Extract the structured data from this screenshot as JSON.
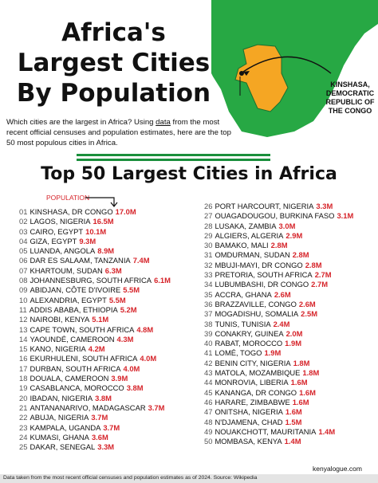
{
  "title_lines": [
    "Africa's",
    "Largest Cities",
    "By Population"
  ],
  "map_callout": [
    "KINSHASA,",
    "DEMOCRATIC",
    "REPUBLIC OF",
    "THE CONGO"
  ],
  "intro": {
    "part1": "Which cities are the largest in Africa? Using ",
    "link": "data",
    "part2": " from the most recent official censuses and population estimates, here are the top 50 most populous cities in Africa."
  },
  "heading": "Top 50 Largest Cities in Africa",
  "population_label": "POPULATION",
  "colors": {
    "accent_red": "#d6242a",
    "map_green": "#27a844",
    "highlight_orange": "#f5a623",
    "flag_green": "#1a8f3c"
  },
  "cities_left": [
    {
      "num": "01",
      "name": "KINSHASA, DR CONGO",
      "pop": "17.0M"
    },
    {
      "num": "02",
      "name": "LAGOS, NIGERIA",
      "pop": "16.5M"
    },
    {
      "num": "03",
      "name": "CAIRO, EGYPT",
      "pop": "10.1M"
    },
    {
      "num": "04",
      "name": "GIZA, EGYPT",
      "pop": "9.3M"
    },
    {
      "num": "05",
      "name": "LUANDA, ANGOLA",
      "pop": "8.9M"
    },
    {
      "num": "06",
      "name": "DAR ES SALAAM, TANZANIA",
      "pop": "7.4M"
    },
    {
      "num": "07",
      "name": "KHARTOUM, SUDAN",
      "pop": "6.3M"
    },
    {
      "num": "08",
      "name": "JOHANNESBURG, SOUTH AFRICA",
      "pop": "6.1M"
    },
    {
      "num": "09",
      "name": "ABIDJAN, CÔTE D'IVOIRE",
      "pop": "5.5M"
    },
    {
      "num": "10",
      "name": "ALEXANDRIA, EGYPT",
      "pop": "5.5M"
    },
    {
      "num": "11",
      "name": "ADDIS ABABA, ETHIOPIA",
      "pop": "5.2M"
    },
    {
      "num": "12",
      "name": "NAIROBI, KENYA",
      "pop": "5.1M"
    },
    {
      "num": "13",
      "name": "CAPE TOWN, SOUTH AFRICA",
      "pop": "4.8M"
    },
    {
      "num": "14",
      "name": "YAOUNDÉ, CAMEROON",
      "pop": "4.3M"
    },
    {
      "num": "15",
      "name": "KANO, NIGERIA",
      "pop": "4.2M"
    },
    {
      "num": "16",
      "name": "EKURHULENI, SOUTH AFRICA",
      "pop": "4.0M"
    },
    {
      "num": "17",
      "name": "DURBAN, SOUTH AFRICA",
      "pop": "4.0M"
    },
    {
      "num": "18",
      "name": "DOUALA, CAMEROON",
      "pop": "3.9M"
    },
    {
      "num": "19",
      "name": "CASABLANCA, MOROCCO",
      "pop": "3.8M"
    },
    {
      "num": "20",
      "name": "IBADAN, NIGERIA",
      "pop": "3.8M"
    },
    {
      "num": "21",
      "name": "ANTANANARIVO, MADAGASCAR",
      "pop": "3.7M"
    },
    {
      "num": "22",
      "name": "ABUJA, NIGERIA",
      "pop": "3.7M"
    },
    {
      "num": "23",
      "name": "KAMPALA, UGANDA",
      "pop": "3.7M"
    },
    {
      "num": "24",
      "name": "KUMASI, GHANA",
      "pop": "3.6M"
    },
    {
      "num": "25",
      "name": "DAKAR, SENEGAL",
      "pop": "3.3M"
    }
  ],
  "cities_right": [
    {
      "num": "26",
      "name": "PORT HARCOURT, NIGERIA",
      "pop": "3.3M"
    },
    {
      "num": "27",
      "name": "OUAGADOUGOU, BURKINA FASO",
      "pop": "3.1M"
    },
    {
      "num": "28",
      "name": "LUSAKA, ZAMBIA",
      "pop": "3.0M"
    },
    {
      "num": "29",
      "name": "ALGIERS, ALGERIA",
      "pop": "2.9M"
    },
    {
      "num": "30",
      "name": "BAMAKO, MALI",
      "pop": "2.8M"
    },
    {
      "num": "31",
      "name": "OMDURMAN, SUDAN",
      "pop": "2.8M"
    },
    {
      "num": "32",
      "name": "MBUJI-MAYI, DR CONGO",
      "pop": "2.8M"
    },
    {
      "num": "33",
      "name": "PRETORIA, SOUTH AFRICA",
      "pop": "2.7M"
    },
    {
      "num": "34",
      "name": "LUBUMBASHI, DR CONGO",
      "pop": "2.7M"
    },
    {
      "num": "35",
      "name": "ACCRA, GHANA",
      "pop": "2.6M"
    },
    {
      "num": "36",
      "name": "BRAZZAVILLE, CONGO",
      "pop": "2.6M"
    },
    {
      "num": "37",
      "name": "MOGADISHU, SOMALIA",
      "pop": "2.5M"
    },
    {
      "num": "38",
      "name": "TUNIS, TUNISIA",
      "pop": "2.4M"
    },
    {
      "num": "39",
      "name": "CONAKRY, GUINEA",
      "pop": "2.0M"
    },
    {
      "num": "40",
      "name": "RABAT, MOROCCO",
      "pop": "1.9M"
    },
    {
      "num": "41",
      "name": "LOMÉ, TOGO",
      "pop": "1.9M"
    },
    {
      "num": "42",
      "name": "BENIN CITY, NIGERIA",
      "pop": "1.8M"
    },
    {
      "num": "43",
      "name": "MATOLA, MOZAMBIQUE",
      "pop": "1.8M"
    },
    {
      "num": "44",
      "name": "MONROVIA, LIBERIA",
      "pop": "1.6M"
    },
    {
      "num": "45",
      "name": "KANANGA, DR CONGO",
      "pop": "1.6M"
    },
    {
      "num": "46",
      "name": "HARARE, ZIMBABWE",
      "pop": "1.6M"
    },
    {
      "num": "47",
      "name": "ONITSHA, NIGERIA",
      "pop": "1.6M"
    },
    {
      "num": "48",
      "name": "N'DJAMENA, CHAD",
      "pop": "1.5M"
    },
    {
      "num": "49",
      "name": "NOUAKCHOTT, MAURITANIA",
      "pop": "1.4M"
    },
    {
      "num": "50",
      "name": "MOMBASA, KENYA",
      "pop": "1.4M"
    }
  ],
  "site": "kenyalogue.com",
  "footer": "Data taken from the most recent official censuses and population estimates as of 2024. Source: Wikipedia"
}
